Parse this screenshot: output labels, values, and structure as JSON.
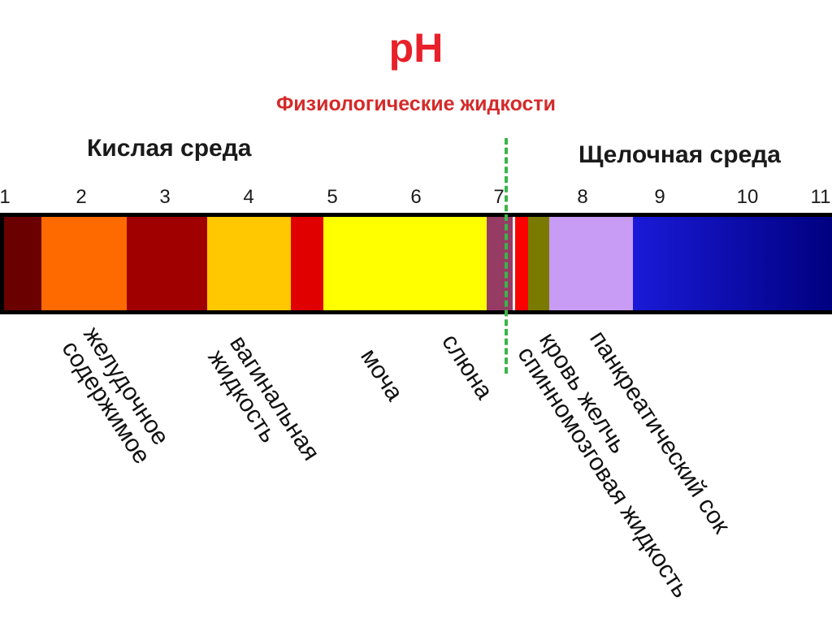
{
  "title": "pH",
  "subtitle": "Физиологические жидкости",
  "acid_label": "Кислая среда",
  "alkaline_label": "Щелочная среда",
  "ticks": [
    "1",
    "2",
    "3",
    "4",
    "5",
    "6",
    "7",
    "8",
    "9",
    "10",
    "11"
  ],
  "colors": {
    "title": "#e8202a",
    "divider": "#39b54a",
    "scale": [
      "#6b0000",
      "#ff6a00",
      "#a00000",
      "#ffc800",
      "#e00000",
      "#ffff00",
      "#963c64",
      "#ff0000",
      "#7a7a00",
      "#c89bf5",
      "#000080"
    ]
  },
  "fluids": [
    {
      "label": "желудочное\nсодержимое"
    },
    {
      "label": "вагинальная\nжидкость"
    },
    {
      "label": "моча"
    },
    {
      "label": "слюна"
    },
    {
      "label": "кровь желчь\nспинномозговая жидкость"
    },
    {
      "label": "панкреатический сок"
    }
  ]
}
